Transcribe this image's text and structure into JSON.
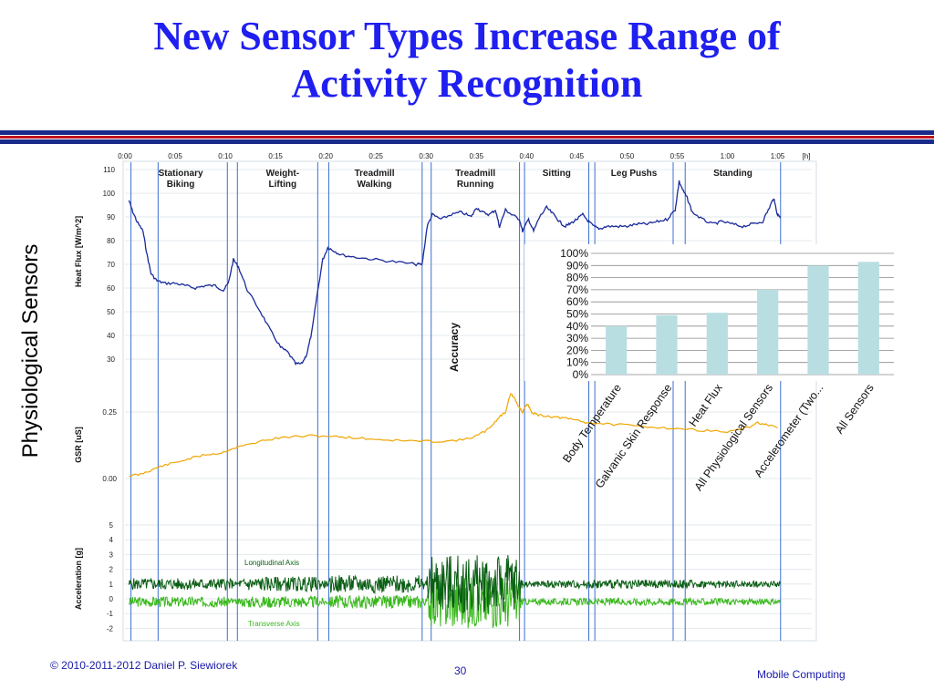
{
  "slide": {
    "title_lines": [
      "New Sensor Types Increase Range of",
      "Activity Recognition"
    ],
    "side_label": "Physiological Sensors",
    "footer_left": "© 2010-2011-2012 Daniel P. Siewiorek",
    "page_number": "30",
    "footer_right": "Mobile Computing",
    "colors": {
      "title": "#1f1ff0",
      "rule_navy": "#1a2a8a",
      "rule_red": "#c0141c",
      "heat_flux": "#1a2a9a",
      "gsr": "#f0a500",
      "longitudinal": "#0a5e14",
      "transverse": "#39b81d",
      "bars": "#b9dee2",
      "event_lines": "#3b6fd0"
    }
  },
  "chart_data": [
    {
      "type": "line",
      "x_axis": {
        "tick_labels": [
          "0:00",
          "0:05",
          "0:10",
          "0:15",
          "0:20",
          "0:25",
          "0:30",
          "0:35",
          "0:40",
          "0:45",
          "0:50",
          "0:55",
          "1:00",
          "1:05",
          "[h]"
        ],
        "tick_values_min": [
          0,
          5,
          10,
          15,
          20,
          25,
          30,
          35,
          40,
          45,
          50,
          55,
          60,
          65
        ],
        "range_min": [
          0,
          67.5
        ]
      },
      "activities": [
        {
          "label_lines": [
            "Stationary",
            "Biking"
          ],
          "start_min": 0.6,
          "end_min": 10.5
        },
        {
          "label_lines": [
            "Weight-",
            "Lifting"
          ],
          "start_min": 12.2,
          "end_min": 19.2
        },
        {
          "label_lines": [
            "Treadmill",
            "Walking"
          ],
          "start_min": 20.2,
          "end_min": 29.5
        },
        {
          "label_lines": [
            "Treadmill",
            "Running"
          ],
          "start_min": 30.5,
          "end_min": 39.3
        },
        {
          "label_lines": [
            "Sitting"
          ],
          "start_min": 39.8,
          "end_min": 46.2
        },
        {
          "label_lines": [
            "Leg Pushs"
          ],
          "start_min": 46.8,
          "end_min": 54.6
        },
        {
          "label_lines": [
            "Standing"
          ],
          "start_min": 55.8,
          "end_min": 65.3
        }
      ],
      "event_lines_min": [
        0.6,
        3.3,
        10.2,
        11.2,
        19.2,
        20.3,
        29.6,
        30.5,
        39.3,
        39.8,
        46.2,
        46.8,
        54.6,
        55.8,
        65.3
      ],
      "series": [
        {
          "name": "",
          "ylabel": "Heat Flux  [W/m^2]",
          "ylim": [
            30,
            110
          ],
          "y_ticks": [
            30,
            40,
            50,
            60,
            70,
            80,
            90,
            100,
            110
          ],
          "points": [
            [
              0.4,
              97
            ],
            [
              0.7,
              93
            ],
            [
              1.2,
              88
            ],
            [
              1.8,
              84
            ],
            [
              2.2,
              74
            ],
            [
              2.6,
              66
            ],
            [
              3.2,
              63
            ],
            [
              4,
              62
            ],
            [
              5,
              62
            ],
            [
              6,
              61
            ],
            [
              7,
              60
            ],
            [
              8,
              61
            ],
            [
              9,
              61
            ],
            [
              9.8,
              59
            ],
            [
              10.3,
              62
            ],
            [
              10.8,
              72
            ],
            [
              11.3,
              69
            ],
            [
              12.2,
              59
            ],
            [
              13.5,
              50
            ],
            [
              14.5,
              42
            ],
            [
              15.5,
              35
            ],
            [
              16.2,
              33
            ],
            [
              17,
              28
            ],
            [
              17.6,
              28
            ],
            [
              18.1,
              32
            ],
            [
              18.6,
              41
            ],
            [
              19.1,
              56
            ],
            [
              19.7,
              72
            ],
            [
              20.2,
              77
            ],
            [
              20.7,
              76
            ],
            [
              21.5,
              74
            ],
            [
              23,
              73
            ],
            [
              25,
              72
            ],
            [
              27,
              71
            ],
            [
              29,
              70
            ],
            [
              29.6,
              70
            ],
            [
              30.1,
              86
            ],
            [
              30.6,
              91
            ],
            [
              31.5,
              89
            ],
            [
              32.5,
              91
            ],
            [
              33.5,
              92
            ],
            [
              34.5,
              90
            ],
            [
              35,
              94
            ],
            [
              35.6,
              92
            ],
            [
              36.3,
              91
            ],
            [
              36.9,
              93
            ],
            [
              37.3,
              86
            ],
            [
              37.9,
              93
            ],
            [
              38.5,
              91
            ],
            [
              39.3,
              89
            ],
            [
              39.6,
              84
            ],
            [
              40.2,
              89
            ],
            [
              40.7,
              84
            ],
            [
              41.3,
              90
            ],
            [
              42,
              94
            ],
            [
              42.7,
              91
            ],
            [
              43.3,
              88
            ],
            [
              43.8,
              86
            ],
            [
              44.3,
              87
            ],
            [
              45,
              89
            ],
            [
              45.6,
              91
            ],
            [
              46.2,
              88
            ],
            [
              46.7,
              86
            ],
            [
              47.3,
              85
            ],
            [
              48,
              86
            ],
            [
              49,
              86
            ],
            [
              50,
              86
            ],
            [
              51,
              87
            ],
            [
              52,
              87
            ],
            [
              53,
              88
            ],
            [
              54,
              89
            ],
            [
              54.8,
              93
            ],
            [
              55.2,
              105
            ],
            [
              55.6,
              101
            ],
            [
              56,
              98
            ],
            [
              56.5,
              92
            ],
            [
              57.5,
              89
            ],
            [
              58.5,
              87
            ],
            [
              59.5,
              88
            ],
            [
              60.5,
              87
            ],
            [
              61.5,
              86
            ],
            [
              62.5,
              87
            ],
            [
              63.5,
              88
            ],
            [
              64.2,
              94
            ],
            [
              64.6,
              98
            ],
            [
              65,
              91
            ],
            [
              65.3,
              90
            ]
          ]
        },
        {
          "name": "",
          "ylabel": "GSR  [uS]",
          "y_ticks": [
            0.0,
            0.25
          ],
          "tick_labels": [
            "0.00",
            "0.25"
          ],
          "ylim": [
            0,
            0.32
          ],
          "points": [
            [
              0.4,
              0.01
            ],
            [
              1.5,
              0.015
            ],
            [
              2.5,
              0.03
            ],
            [
              3.5,
              0.045
            ],
            [
              5,
              0.06
            ],
            [
              6.5,
              0.075
            ],
            [
              8,
              0.09
            ],
            [
              9.5,
              0.095
            ],
            [
              10.5,
              0.11
            ],
            [
              12,
              0.125
            ],
            [
              14,
              0.145
            ],
            [
              16,
              0.155
            ],
            [
              18,
              0.16
            ],
            [
              20,
              0.16
            ],
            [
              22,
              0.155
            ],
            [
              24,
              0.15
            ],
            [
              26,
              0.145
            ],
            [
              28,
              0.142
            ],
            [
              30,
              0.14
            ],
            [
              32,
              0.14
            ],
            [
              34,
              0.148
            ],
            [
              35,
              0.16
            ],
            [
              36,
              0.18
            ],
            [
              36.8,
              0.21
            ],
            [
              37.4,
              0.235
            ],
            [
              37.9,
              0.25
            ],
            [
              38.4,
              0.32
            ],
            [
              38.8,
              0.3
            ],
            [
              39.2,
              0.27
            ],
            [
              39.6,
              0.25
            ],
            [
              40.1,
              0.28
            ],
            [
              40.5,
              0.25
            ],
            [
              41,
              0.24
            ],
            [
              42,
              0.235
            ],
            [
              43,
              0.23
            ],
            [
              44,
              0.225
            ],
            [
              45,
              0.22
            ],
            [
              46,
              0.21
            ],
            [
              48,
              0.205
            ],
            [
              50,
              0.2
            ],
            [
              52,
              0.195
            ],
            [
              54,
              0.19
            ],
            [
              56,
              0.185
            ],
            [
              58,
              0.18
            ],
            [
              60,
              0.175
            ],
            [
              62,
              0.19
            ],
            [
              63,
              0.21
            ],
            [
              64,
              0.2
            ],
            [
              65,
              0.19
            ]
          ]
        },
        {
          "name": "Longitudinal Axis",
          "ylabel": "Acceleration  [g]",
          "ylim": [
            -2.6,
            5.5
          ],
          "y_ticks": [
            -2,
            -1,
            0,
            1,
            2,
            3,
            4,
            5
          ],
          "baseline_g": 1.0,
          "amplitude_profile": [
            [
              0,
              0.15
            ],
            [
              0.6,
              0.4
            ],
            [
              10.5,
              0.4
            ],
            [
              11,
              0.15
            ],
            [
              12.2,
              0.5
            ],
            [
              19,
              0.5
            ],
            [
              20.3,
              0.15
            ],
            [
              20.5,
              0.6
            ],
            [
              29.5,
              0.6
            ],
            [
              30,
              0.2
            ],
            [
              30.5,
              2.0
            ],
            [
              39.2,
              2.0
            ],
            [
              39.6,
              0.2
            ],
            [
              46.5,
              0.3
            ],
            [
              55,
              0.3
            ],
            [
              65.3,
              0.2
            ]
          ]
        },
        {
          "name": "Transverse Axis",
          "ylabel": "",
          "baseline_g": -0.2,
          "amplitude_profile": [
            [
              0,
              0.15
            ],
            [
              0.6,
              0.35
            ],
            [
              10.5,
              0.35
            ],
            [
              11,
              0.15
            ],
            [
              12.2,
              0.4
            ],
            [
              19,
              0.4
            ],
            [
              20.3,
              0.15
            ],
            [
              20.5,
              0.45
            ],
            [
              29.5,
              0.45
            ],
            [
              30,
              0.2
            ],
            [
              30.5,
              1.8
            ],
            [
              39.2,
              1.8
            ],
            [
              39.6,
              0.2
            ],
            [
              46.5,
              0.25
            ],
            [
              55,
              0.25
            ],
            [
              65.3,
              0.2
            ]
          ]
        }
      ]
    },
    {
      "type": "bar",
      "categories": [
        "Body Temperature",
        "Galvanic Skin Response",
        "Heat Flux",
        "All Physiological Sensors",
        "Accelerometer (Two...",
        "All Sensors"
      ],
      "values": [
        40,
        49,
        51,
        70,
        90,
        93
      ],
      "ylabel": "Accuracy",
      "ylim": [
        0,
        100
      ],
      "y_tick_labels": [
        "0%",
        "10%",
        "20%",
        "30%",
        "40%",
        "50%",
        "60%",
        "70%",
        "80%",
        "90%",
        "100%"
      ],
      "grid": true
    }
  ]
}
